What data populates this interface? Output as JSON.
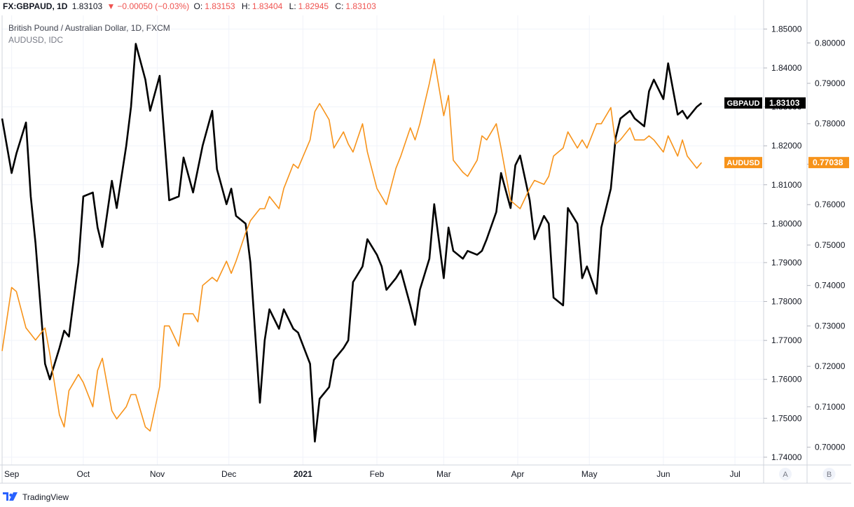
{
  "header": {
    "symbol": "FX:GBPAUD, 1D",
    "last": "1.83103",
    "change_arrow": "▼",
    "change": "−0.00050 (−0.03%)",
    "open_label": "O:",
    "open": "1.83153",
    "high_label": "H:",
    "high": "1.83404",
    "low_label": "L:",
    "low": "1.82945",
    "close_label": "C:",
    "close": "1.83103"
  },
  "legend": {
    "main": "British Pound / Australian Dollar, 1D, FXCM",
    "compare": "AUDUSD, IDC"
  },
  "scales": {
    "a_label": "A",
    "b_label": "B"
  },
  "branding": {
    "name": "TradingView"
  },
  "colors": {
    "gbpaud": "#000000",
    "audusd": "#f7931a",
    "down": "#ef5350",
    "grid": "#f0f3fa"
  },
  "chart_data": {
    "type": "line",
    "x": [
      "2020-08-28",
      "2020-09-01",
      "2020-09-03",
      "2020-09-07",
      "2020-09-09",
      "2020-09-11",
      "2020-09-15",
      "2020-09-17",
      "2020-09-21",
      "2020-09-23",
      "2020-09-25",
      "2020-09-29",
      "2020-10-01",
      "2020-10-05",
      "2020-10-07",
      "2020-10-09",
      "2020-10-13",
      "2020-10-15",
      "2020-10-19",
      "2020-10-21",
      "2020-10-23",
      "2020-10-27",
      "2020-10-29",
      "2020-11-02",
      "2020-11-04",
      "2020-11-06",
      "2020-11-10",
      "2020-11-12",
      "2020-11-16",
      "2020-11-18",
      "2020-11-20",
      "2020-11-24",
      "2020-11-26",
      "2020-11-30",
      "2020-12-02",
      "2020-12-04",
      "2020-12-08",
      "2020-12-10",
      "2020-12-14",
      "2020-12-16",
      "2020-12-18",
      "2020-12-22",
      "2020-12-24",
      "2020-12-28",
      "2020-12-30",
      "2021-01-04",
      "2021-01-06",
      "2021-01-08",
      "2021-01-12",
      "2021-01-14",
      "2021-01-18",
      "2021-01-20",
      "2021-01-22",
      "2021-01-26",
      "2021-01-28",
      "2021-02-01",
      "2021-02-03",
      "2021-02-05",
      "2021-02-09",
      "2021-02-11",
      "2021-02-15",
      "2021-02-17",
      "2021-02-19",
      "2021-02-23",
      "2021-02-25",
      "2021-03-01",
      "2021-03-03",
      "2021-03-05",
      "2021-03-09",
      "2021-03-11",
      "2021-03-15",
      "2021-03-17",
      "2021-03-19",
      "2021-03-23",
      "2021-03-25",
      "2021-03-29",
      "2021-03-31",
      "2021-04-02",
      "2021-04-06",
      "2021-04-08",
      "2021-04-12",
      "2021-04-14",
      "2021-04-16",
      "2021-04-20",
      "2021-04-22",
      "2021-04-26",
      "2021-04-28",
      "2021-04-30",
      "2021-05-04",
      "2021-05-06",
      "2021-05-10",
      "2021-05-12",
      "2021-05-14",
      "2021-05-18",
      "2021-05-20",
      "2021-05-24",
      "2021-05-26",
      "2021-05-28",
      "2021-06-01",
      "2021-06-03",
      "2021-06-07",
      "2021-06-09",
      "2021-06-11",
      "2021-06-15",
      "2021-06-17"
    ],
    "series": [
      {
        "name": "GBPAUD",
        "axis": "left",
        "last_label": "1.83103",
        "values": [
          1.827,
          1.813,
          1.818,
          1.826,
          1.807,
          1.795,
          1.764,
          1.76,
          1.768,
          1.7725,
          1.771,
          1.79,
          1.807,
          1.808,
          1.799,
          1.794,
          1.811,
          1.804,
          1.82,
          1.83,
          1.8462,
          1.837,
          1.829,
          1.838,
          1.822,
          1.806,
          1.807,
          1.817,
          1.808,
          1.814,
          1.82,
          1.829,
          1.814,
          1.805,
          1.809,
          1.802,
          1.8,
          1.79,
          1.754,
          1.77,
          1.778,
          1.773,
          1.778,
          1.773,
          1.772,
          1.764,
          1.744,
          1.755,
          1.758,
          1.765,
          1.768,
          1.77,
          1.785,
          1.789,
          1.796,
          1.792,
          1.789,
          1.783,
          1.786,
          1.788,
          1.779,
          1.774,
          1.783,
          1.791,
          1.805,
          1.786,
          1.799,
          1.793,
          1.791,
          1.793,
          1.792,
          1.793,
          1.796,
          1.803,
          1.813,
          1.804,
          1.815,
          1.8175,
          1.806,
          1.796,
          1.802,
          1.8,
          1.781,
          1.779,
          1.804,
          1.8,
          1.786,
          1.789,
          1.782,
          1.799,
          1.809,
          1.822,
          1.827,
          1.829,
          1.827,
          1.825,
          1.834,
          1.837,
          1.832,
          1.8412,
          1.828,
          1.829,
          1.827,
          1.83,
          1.831
        ]
      },
      {
        "name": "AUDUSD",
        "axis": "right",
        "last_label": "0.77038",
        "values": [
          0.7238,
          0.7395,
          0.7385,
          0.7295,
          0.728,
          0.7265,
          0.7295,
          0.723,
          0.708,
          0.705,
          0.714,
          0.718,
          0.716,
          0.71,
          0.719,
          0.722,
          0.709,
          0.707,
          0.71,
          0.713,
          0.713,
          0.705,
          0.704,
          0.715,
          0.73,
          0.73,
          0.725,
          0.733,
          0.733,
          0.731,
          0.74,
          0.742,
          0.741,
          0.746,
          0.743,
          0.746,
          0.753,
          0.756,
          0.759,
          0.759,
          0.762,
          0.759,
          0.764,
          0.77,
          0.769,
          0.776,
          0.783,
          0.785,
          0.781,
          0.774,
          0.778,
          0.775,
          0.773,
          0.78,
          0.773,
          0.764,
          0.762,
          0.76,
          0.769,
          0.772,
          0.779,
          0.776,
          0.78,
          0.79,
          0.796,
          0.782,
          0.787,
          0.771,
          0.768,
          0.767,
          0.771,
          0.777,
          0.776,
          0.78,
          0.774,
          0.761,
          0.76,
          0.759,
          0.764,
          0.766,
          0.765,
          0.767,
          0.772,
          0.774,
          0.778,
          0.774,
          0.776,
          0.774,
          0.78,
          0.78,
          0.784,
          0.775,
          0.776,
          0.779,
          0.776,
          0.776,
          0.777,
          0.776,
          0.773,
          0.777,
          0.772,
          0.776,
          0.772,
          0.769,
          0.7704
        ]
      }
    ],
    "y_left": {
      "ticks": [
        "1.74000",
        "1.75000",
        "1.76000",
        "1.77000",
        "1.78000",
        "1.79000",
        "1.80000",
        "1.81000",
        "1.82000",
        "1.83000",
        "1.84000",
        "1.85000"
      ],
      "range": [
        1.738,
        1.8535
      ]
    },
    "y_right": {
      "ticks": [
        "0.70000",
        "0.71000",
        "0.72000",
        "0.73000",
        "0.74000",
        "0.75000",
        "0.76000",
        "0.77000",
        "0.78000",
        "0.79000",
        "0.80000"
      ],
      "range": [
        0.6956,
        0.8068
      ]
    },
    "x_ticks": [
      {
        "label": "Sep",
        "date": "2020-09-01",
        "bold": false
      },
      {
        "label": "Oct",
        "date": "2020-10-01",
        "bold": false
      },
      {
        "label": "Nov",
        "date": "2020-11-01",
        "bold": false
      },
      {
        "label": "Dec",
        "date": "2020-12-01",
        "bold": false
      },
      {
        "label": "2021",
        "date": "2021-01-01",
        "bold": true
      },
      {
        "label": "Feb",
        "date": "2021-02-01",
        "bold": false
      },
      {
        "label": "Mar",
        "date": "2021-03-01",
        "bold": false
      },
      {
        "label": "Apr",
        "date": "2021-04-01",
        "bold": false
      },
      {
        "label": "May",
        "date": "2021-05-01",
        "bold": false
      },
      {
        "label": "Jun",
        "date": "2021-06-01",
        "bold": false
      },
      {
        "label": "Jul",
        "date": "2021-07-01",
        "bold": false
      }
    ],
    "x_range": [
      "2020-08-28",
      "2021-07-13"
    ],
    "grid": true
  }
}
